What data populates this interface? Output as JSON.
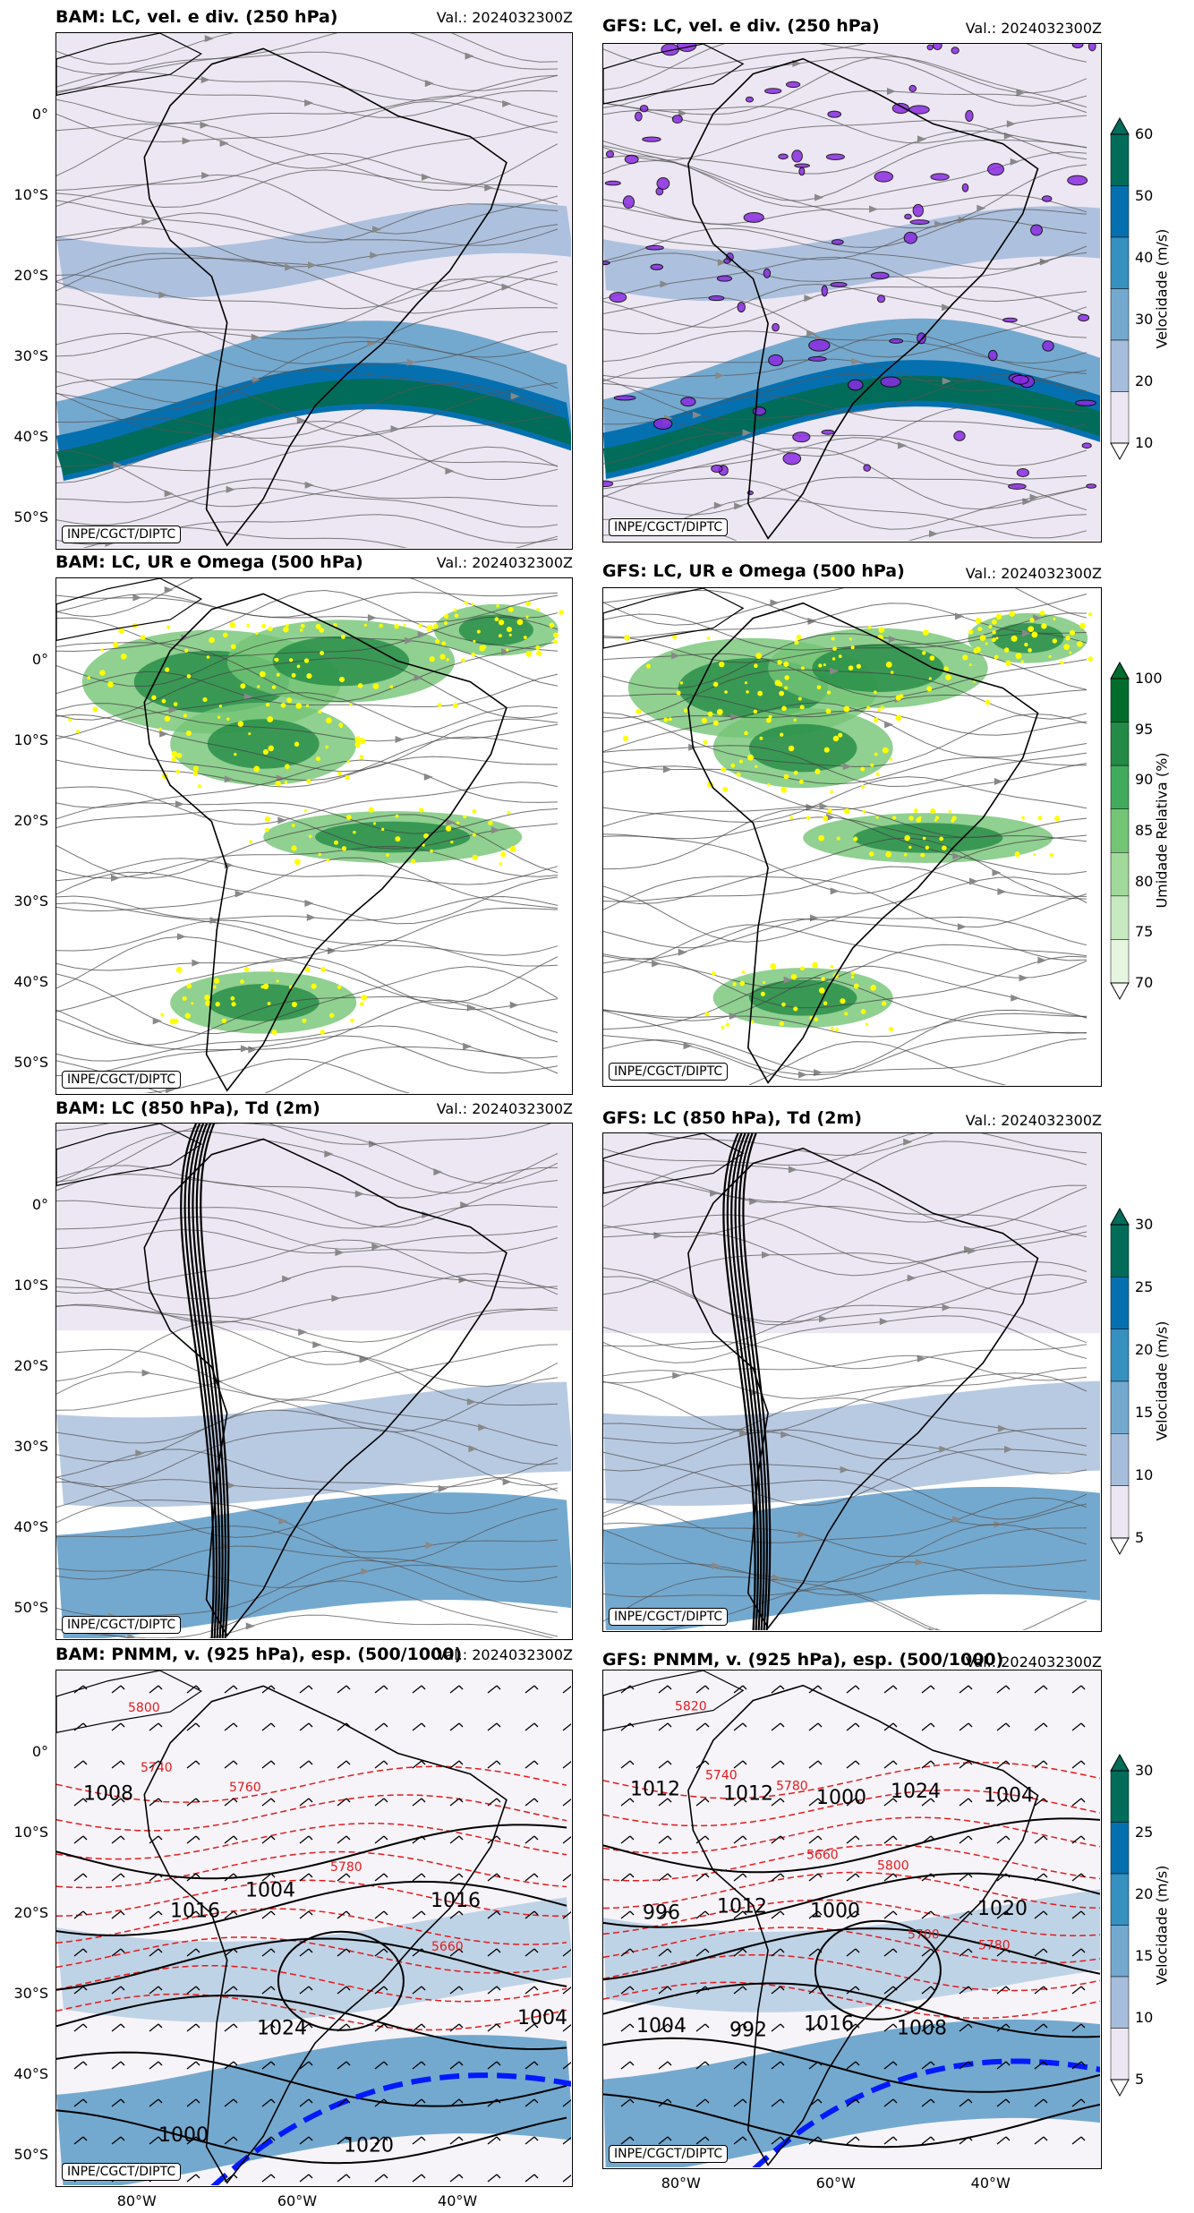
{
  "chart_data": [
    {
      "type": "map",
      "panel": "BAM",
      "title": "BAM: LC, vel. e div. (250 hPa)",
      "valid": "Val.: 2024032300Z",
      "y_ticks": [
        "0°",
        "10°S",
        "20°S",
        "30°S",
        "40°S",
        "50°S"
      ],
      "credit": "INPE/CGCT/DIPTC",
      "field": "velocity"
    },
    {
      "type": "map",
      "panel": "GFS",
      "title": "GFS: LC, vel. e div. (250 hPa)",
      "valid": "Val.: 2024032300Z",
      "credit": "INPE/CGCT/DIPTC",
      "field": "velocity",
      "colorbar": {
        "label": "Velocidade (m/s)",
        "ticks": [
          "10",
          "20",
          "30",
          "40",
          "50",
          "60"
        ],
        "colors": [
          "#ece7f2",
          "#a6bddb",
          "#74a9cf",
          "#3690c0",
          "#0570b0",
          "#016c59"
        ]
      }
    },
    {
      "type": "map",
      "panel": "BAM",
      "title": "BAM: LC, UR e Omega (500 hPa)",
      "valid": "Val.: 2024032300Z",
      "y_ticks": [
        "0°",
        "10°S",
        "20°S",
        "30°S",
        "40°S",
        "50°S"
      ],
      "credit": "INPE/CGCT/DIPTC",
      "field": "humidity"
    },
    {
      "type": "map",
      "panel": "GFS",
      "title": "GFS: LC, UR e Omega (500 hPa)",
      "valid": "Val.: 2024032300Z",
      "credit": "INPE/CGCT/DIPTC",
      "field": "humidity",
      "colorbar": {
        "label": "Umidade Relativa (%)",
        "ticks": [
          "70",
          "75",
          "80",
          "85",
          "90",
          "95",
          "100"
        ],
        "colors": [
          "#e5f5e0",
          "#c7e9c0",
          "#a1d99b",
          "#74c476",
          "#41ab5d",
          "#238b45",
          "#006d2c"
        ]
      }
    },
    {
      "type": "map",
      "panel": "BAM",
      "title": "BAM: LC (850 hPa), Td (2m)",
      "valid": "Val.: 2024032300Z",
      "y_ticks": [
        "0°",
        "10°S",
        "20°S",
        "30°S",
        "40°S",
        "50°S"
      ],
      "credit": "INPE/CGCT/DIPTC",
      "field": "lowlevel"
    },
    {
      "type": "map",
      "panel": "GFS",
      "title": "GFS: LC (850 hPa), Td (2m)",
      "valid": "Val.: 2024032300Z",
      "credit": "INPE/CGCT/DIPTC",
      "field": "lowlevel",
      "colorbar": {
        "label": "Velocidade (m/s)",
        "ticks": [
          "5",
          "10",
          "15",
          "20",
          "25",
          "30"
        ],
        "colors": [
          "#ece7f2",
          "#a6bddb",
          "#74a9cf",
          "#3690c0",
          "#0570b0",
          "#016c59"
        ]
      }
    },
    {
      "type": "map",
      "panel": "BAM",
      "title": "BAM: PNMM, v. (925 hPa), esp. (500/1000)",
      "valid": "Val.: 2024032300Z",
      "y_ticks": [
        "0°",
        "10°S",
        "20°S",
        "30°S",
        "40°S",
        "50°S"
      ],
      "x_ticks": [
        "80°W",
        "60°W",
        "40°W"
      ],
      "credit": "INPE/CGCT/DIPTC",
      "field": "pressure",
      "pressure_labels": [
        "1008",
        "1016",
        "1024",
        "1020",
        "1016",
        "1004",
        "1000",
        "1004"
      ],
      "thickness_labels": [
        "5800",
        "5760",
        "5780",
        "5660",
        "5740"
      ]
    },
    {
      "type": "map",
      "panel": "GFS",
      "title": "GFS: PNMM, v. (925 hPa), esp. (500/1000)",
      "valid": "Val.: 2024032300Z",
      "x_ticks": [
        "80°W",
        "60°W",
        "40°W"
      ],
      "credit": "INPE/CGCT/DIPTC",
      "field": "pressure",
      "pressure_labels": [
        "1012",
        "1012",
        "1016",
        "1024",
        "1020",
        "1004",
        "1012",
        "1000",
        "1008",
        "1004",
        "996",
        "992",
        "1000"
      ],
      "thickness_labels": [
        "5820",
        "5780",
        "5800",
        "5780",
        "5740",
        "5660",
        "5700"
      ],
      "colorbar": {
        "label": "Velocidade (m/s)",
        "ticks": [
          "5",
          "10",
          "15",
          "20",
          "25",
          "30"
        ],
        "colors": [
          "#ece7f2",
          "#a6bddb",
          "#74a9cf",
          "#3690c0",
          "#0570b0",
          "#016c59"
        ]
      }
    }
  ]
}
